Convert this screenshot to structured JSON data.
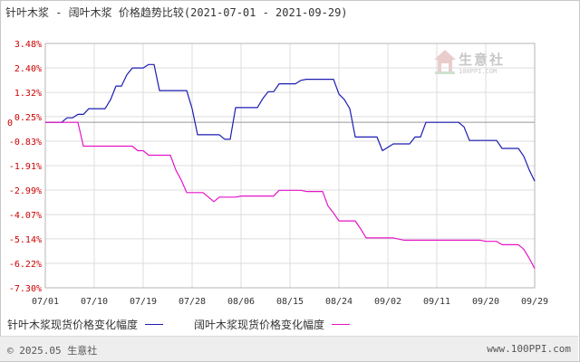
{
  "title": "针叶木浆 - 阔叶木浆 价格趋势比较(2021-07-01 - 2021-09-29)",
  "watermark": {
    "brand": "生意社",
    "site": "100PPI.COM"
  },
  "footer": {
    "copyright": "© 2025.05 生意社",
    "url": "www.100PPI.com"
  },
  "colors": {
    "series1": "#1c1cb4",
    "series2": "#e614c8",
    "grid": "#dcdcdc",
    "zero": "#999999"
  },
  "chart_data": {
    "type": "line",
    "title": "针叶木浆 - 阔叶木浆 价格趋势比较(2021-07-01 - 2021-09-29)",
    "xlabel": "",
    "ylabel": "",
    "x_start": "2021-07-01",
    "x_end": "2021-09-29",
    "x_ticks": [
      "07/01",
      "07/10",
      "07/19",
      "07/28",
      "08/06",
      "08/15",
      "08/24",
      "09/02",
      "09/11",
      "09/20",
      "09/29"
    ],
    "y_ticks": [
      "3.48%",
      "2.40%",
      "1.32%",
      "0.25%",
      "-0.83%",
      "-1.91%",
      "-2.99%",
      "-4.07%",
      "-5.14%",
      "-6.22%",
      "-7.30%"
    ],
    "y_tick_values": [
      3.48,
      2.4,
      1.32,
      0.25,
      -0.83,
      -1.91,
      -2.99,
      -4.07,
      -5.14,
      -6.22,
      -7.3
    ],
    "zero_label": "0",
    "ylim": [
      -7.3,
      3.48
    ],
    "grid": true,
    "legend_position": "bottom",
    "series": [
      {
        "name": "针叶木浆现货价格变化幅度",
        "points": [
          [
            "2021-07-01",
            0
          ],
          [
            "2021-07-04",
            0
          ],
          [
            "2021-07-05",
            0.2
          ],
          [
            "2021-07-06",
            0.2
          ],
          [
            "2021-07-07",
            0.35
          ],
          [
            "2021-07-08",
            0.35
          ],
          [
            "2021-07-09",
            0.6
          ],
          [
            "2021-07-12",
            0.6
          ],
          [
            "2021-07-13",
            1.0
          ],
          [
            "2021-07-14",
            1.6
          ],
          [
            "2021-07-15",
            1.6
          ],
          [
            "2021-07-16",
            2.1
          ],
          [
            "2021-07-17",
            2.4
          ],
          [
            "2021-07-19",
            2.4
          ],
          [
            "2021-07-20",
            2.55
          ],
          [
            "2021-07-21",
            2.55
          ],
          [
            "2021-07-22",
            1.4
          ],
          [
            "2021-07-27",
            1.4
          ],
          [
            "2021-07-28",
            0.6
          ],
          [
            "2021-07-29",
            -0.55
          ],
          [
            "2021-08-02",
            -0.55
          ],
          [
            "2021-08-03",
            -0.75
          ],
          [
            "2021-08-04",
            -0.75
          ],
          [
            "2021-08-05",
            0.65
          ],
          [
            "2021-08-09",
            0.65
          ],
          [
            "2021-08-10",
            1.05
          ],
          [
            "2021-08-11",
            1.35
          ],
          [
            "2021-08-12",
            1.35
          ],
          [
            "2021-08-13",
            1.7
          ],
          [
            "2021-08-16",
            1.7
          ],
          [
            "2021-08-17",
            1.85
          ],
          [
            "2021-08-18",
            1.9
          ],
          [
            "2021-08-23",
            1.9
          ],
          [
            "2021-08-24",
            1.25
          ],
          [
            "2021-08-25",
            1.0
          ],
          [
            "2021-08-26",
            0.6
          ],
          [
            "2021-08-27",
            -0.65
          ],
          [
            "2021-08-31",
            -0.65
          ],
          [
            "2021-09-01",
            -1.25
          ],
          [
            "2021-09-02",
            -1.1
          ],
          [
            "2021-09-03",
            -0.95
          ],
          [
            "2021-09-06",
            -0.95
          ],
          [
            "2021-09-07",
            -0.65
          ],
          [
            "2021-09-08",
            -0.65
          ],
          [
            "2021-09-09",
            0
          ],
          [
            "2021-09-15",
            0
          ],
          [
            "2021-09-16",
            -0.2
          ],
          [
            "2021-09-17",
            -0.8
          ],
          [
            "2021-09-22",
            -0.8
          ],
          [
            "2021-09-23",
            -1.15
          ],
          [
            "2021-09-26",
            -1.15
          ],
          [
            "2021-09-27",
            -1.5
          ],
          [
            "2021-09-28",
            -2.1
          ],
          [
            "2021-09-29",
            -2.6
          ]
        ]
      },
      {
        "name": "阔叶木浆现货价格变化幅度",
        "points": [
          [
            "2021-07-01",
            0
          ],
          [
            "2021-07-07",
            0
          ],
          [
            "2021-07-08",
            -1.05
          ],
          [
            "2021-07-17",
            -1.05
          ],
          [
            "2021-07-18",
            -1.25
          ],
          [
            "2021-07-19",
            -1.25
          ],
          [
            "2021-07-20",
            -1.45
          ],
          [
            "2021-07-24",
            -1.45
          ],
          [
            "2021-07-25",
            -2.1
          ],
          [
            "2021-07-26",
            -2.55
          ],
          [
            "2021-07-27",
            -3.1
          ],
          [
            "2021-07-30",
            -3.1
          ],
          [
            "2021-08-01",
            -3.5
          ],
          [
            "2021-08-02",
            -3.3
          ],
          [
            "2021-08-05",
            -3.3
          ],
          [
            "2021-08-06",
            -3.25
          ],
          [
            "2021-08-12",
            -3.25
          ],
          [
            "2021-08-13",
            -3.0
          ],
          [
            "2021-08-17",
            -3.0
          ],
          [
            "2021-08-18",
            -3.05
          ],
          [
            "2021-08-21",
            -3.05
          ],
          [
            "2021-08-22",
            -3.7
          ],
          [
            "2021-08-23",
            -4.0
          ],
          [
            "2021-08-24",
            -4.35
          ],
          [
            "2021-08-27",
            -4.35
          ],
          [
            "2021-08-28",
            -4.7
          ],
          [
            "2021-08-29",
            -5.1
          ],
          [
            "2021-09-03",
            -5.1
          ],
          [
            "2021-09-05",
            -5.2
          ],
          [
            "2021-09-19",
            -5.2
          ],
          [
            "2021-09-20",
            -5.25
          ],
          [
            "2021-09-22",
            -5.25
          ],
          [
            "2021-09-23",
            -5.4
          ],
          [
            "2021-09-26",
            -5.4
          ],
          [
            "2021-09-27",
            -5.6
          ],
          [
            "2021-09-28",
            -6.0
          ],
          [
            "2021-09-29",
            -6.45
          ]
        ]
      }
    ]
  }
}
